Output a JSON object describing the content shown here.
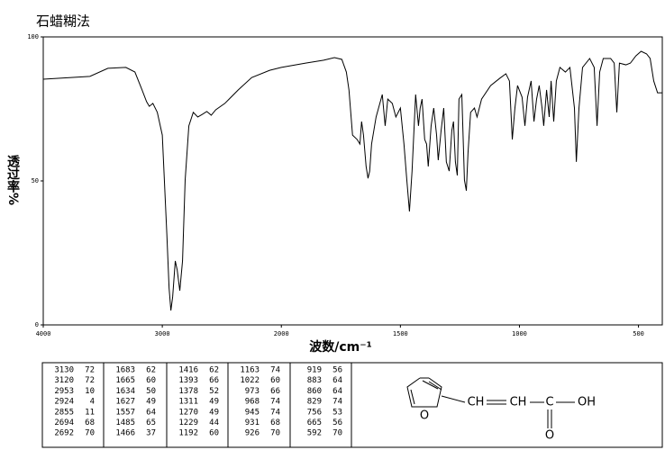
{
  "chart_data": {
    "type": "line",
    "title": "石蜡糊法",
    "xlabel": "波数/cm⁻¹",
    "ylabel": "透过率%",
    "color": "#000000",
    "xlim": [
      4000,
      400
    ],
    "xticks": [
      4000,
      3000,
      2000,
      1500,
      1000,
      500
    ],
    "ylim": [
      0,
      100
    ],
    "yticks": [
      0,
      50,
      100
    ],
    "x": [
      4000,
      3608,
      3457,
      3306,
      3230,
      3170,
      3132,
      3109,
      3079,
      3042,
      3000,
      2962,
      2943,
      2928,
      2913,
      2891,
      2875,
      2853,
      2830,
      2808,
      2777,
      2740,
      2702,
      2664,
      2626,
      2589,
      2551,
      2475,
      2362,
      2249,
      2098,
      2000,
      1898,
      1822,
      1777,
      1746,
      1727,
      1716,
      1701,
      1682,
      1670,
      1663,
      1655,
      1644,
      1636,
      1629,
      1621,
      1602,
      1576,
      1564,
      1553,
      1534,
      1519,
      1500,
      1485,
      1473,
      1462,
      1451,
      1436,
      1424,
      1417,
      1409,
      1398,
      1390,
      1383,
      1371,
      1360,
      1348,
      1341,
      1329,
      1318,
      1307,
      1295,
      1284,
      1277,
      1269,
      1261,
      1254,
      1242,
      1231,
      1223,
      1216,
      1205,
      1189,
      1178,
      1159,
      1121,
      1083,
      1057,
      1042,
      1030,
      1019,
      1008,
      989,
      977,
      966,
      951,
      939,
      928,
      917,
      905,
      898,
      886,
      875,
      867,
      856,
      845,
      830,
      807,
      788,
      769,
      761,
      750,
      735,
      705,
      686,
      674,
      663,
      648,
      617,
      602,
      591,
      580,
      553,
      534,
      511,
      489,
      466,
      451,
      436,
      420,
      400
    ],
    "values": [
      85.3,
      86.3,
      89.1,
      89.4,
      87.8,
      81.6,
      77.5,
      75.9,
      76.9,
      73.8,
      65.9,
      31.6,
      12.8,
      5.0,
      9.7,
      22.2,
      19.1,
      11.9,
      22.2,
      50.3,
      69.1,
      73.8,
      72.2,
      73.1,
      74.1,
      72.8,
      74.7,
      76.9,
      81.6,
      85.9,
      88.4,
      89.4,
      90.9,
      91.9,
      92.8,
      92.2,
      87.8,
      81.6,
      65.9,
      64.4,
      62.8,
      70.6,
      65.9,
      55.0,
      50.9,
      53.4,
      62.8,
      72.2,
      80.0,
      69.1,
      78.4,
      76.9,
      72.2,
      75.3,
      62.8,
      50.3,
      39.4,
      53.4,
      80.0,
      69.1,
      75.3,
      78.4,
      64.4,
      62.8,
      55.0,
      69.1,
      75.3,
      65.9,
      57.2,
      67.5,
      75.3,
      56.6,
      53.4,
      67.5,
      70.6,
      56.6,
      51.9,
      78.4,
      80.0,
      50.3,
      46.6,
      59.7,
      73.8,
      75.3,
      72.2,
      78.4,
      83.1,
      85.6,
      87.2,
      84.7,
      64.4,
      75.3,
      83.1,
      79.1,
      69.1,
      79.1,
      84.7,
      70.6,
      78.4,
      83.1,
      75.3,
      69.1,
      81.6,
      72.2,
      84.7,
      70.6,
      84.7,
      89.4,
      87.8,
      89.4,
      75.3,
      56.6,
      75.3,
      89.4,
      92.5,
      89.4,
      69.1,
      87.8,
      92.5,
      92.5,
      90.9,
      73.8,
      90.9,
      90.3,
      90.9,
      93.4,
      95.0,
      94.1,
      92.5,
      84.7,
      80.6,
      80.6
    ]
  },
  "peak_table": [
    [
      [
        3130,
        72
      ],
      [
        3120,
        72
      ],
      [
        2953,
        10
      ],
      [
        2924,
        4
      ],
      [
        2855,
        11
      ],
      [
        2694,
        68
      ],
      [
        2692,
        70
      ]
    ],
    [
      [
        1683,
        62
      ],
      [
        1665,
        60
      ],
      [
        1634,
        50
      ],
      [
        1627,
        49
      ],
      [
        1557,
        64
      ],
      [
        1485,
        65
      ],
      [
        1466,
        37
      ]
    ],
    [
      [
        1416,
        62
      ],
      [
        1393,
        66
      ],
      [
        1378,
        52
      ],
      [
        1311,
        49
      ],
      [
        1270,
        49
      ],
      [
        1229,
        44
      ],
      [
        1192,
        60
      ]
    ],
    [
      [
        1163,
        74
      ],
      [
        1022,
        60
      ],
      [
        973,
        66
      ],
      [
        968,
        74
      ],
      [
        945,
        74
      ],
      [
        931,
        68
      ],
      [
        926,
        70
      ]
    ],
    [
      [
        919,
        56
      ],
      [
        883,
        64
      ],
      [
        860,
        64
      ],
      [
        829,
        74
      ],
      [
        756,
        53
      ],
      [
        665,
        56
      ],
      [
        592,
        70
      ]
    ]
  ],
  "structure": {
    "ring_o": "O",
    "ch1": "CH",
    "ch2": "CH",
    "c": "C",
    "oh": "OH",
    "o": "O"
  }
}
